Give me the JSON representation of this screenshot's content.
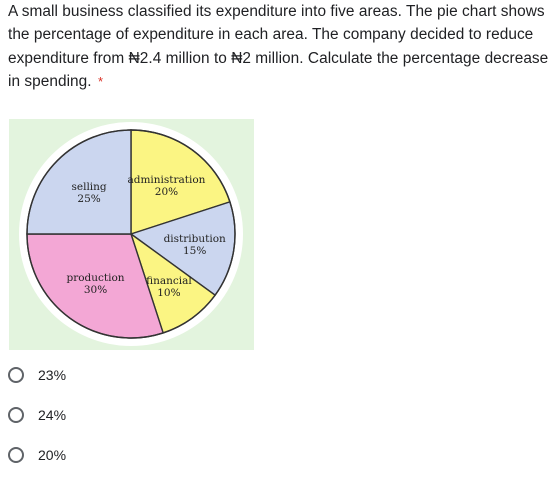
{
  "question": {
    "text": "A small business classified its expenditure into five areas. The pie chart shows the percentage of expenditure in each area. The company decided to reduce expenditure from ₦2.4 million to ₦2 million. Calculate the percentage decrease in spending.",
    "required_marker": "*"
  },
  "colors": {
    "chart_background": "#e3f4de",
    "outline": "#333333",
    "required": "#d93025"
  },
  "chart_data": {
    "type": "pie",
    "title": "",
    "start_angle_deg": 0,
    "direction": "clockwise",
    "slices": [
      {
        "name": "administration",
        "value_label": "20%",
        "value": 20,
        "color": "#fbf583"
      },
      {
        "name": "distribution",
        "value_label": "15%",
        "value": 15,
        "color": "#cbd6ef"
      },
      {
        "name": "financial",
        "value_label": "10%",
        "value": 10,
        "color": "#fbf583"
      },
      {
        "name": "production",
        "value_label": "30%",
        "value": 30,
        "color": "#f3a7d5"
      },
      {
        "name": "selling",
        "value_label": "25%",
        "value": 25,
        "color": "#cbd6ef"
      }
    ]
  },
  "options": [
    {
      "label": "23%"
    },
    {
      "label": "24%"
    },
    {
      "label": "20%"
    }
  ]
}
